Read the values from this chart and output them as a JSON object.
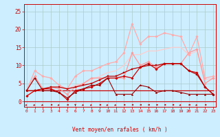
{
  "bg_color": "#cceeff",
  "grid_color": "#aacccc",
  "xlabel": "Vent moyen/en rafales ( km/h )",
  "xlim": [
    -0.3,
    23.3
  ],
  "ylim": [
    -1.5,
    27
  ],
  "yticks": [
    0,
    5,
    10,
    15,
    20,
    25
  ],
  "xticks": [
    0,
    1,
    2,
    3,
    4,
    5,
    6,
    7,
    8,
    9,
    10,
    11,
    12,
    13,
    14,
    15,
    16,
    17,
    18,
    19,
    20,
    21,
    22,
    23
  ],
  "lines": [
    {
      "y": [
        3,
        3,
        3,
        3,
        3,
        3,
        3,
        3,
        3,
        3,
        3,
        3,
        3,
        3,
        3,
        3,
        3,
        3,
        3,
        3,
        3,
        3,
        3,
        3
      ],
      "color": "#cc0000",
      "lw": 0.9,
      "marker": null,
      "ms": 0,
      "zorder": 2
    },
    {
      "y": [
        1.5,
        3,
        3.5,
        3.5,
        2.5,
        0.5,
        3,
        3.5,
        4,
        5,
        6.5,
        6.5,
        7,
        6.5,
        9.5,
        10.5,
        9,
        10.5,
        10.5,
        10.5,
        8.5,
        8,
        4,
        2
      ],
      "color": "#cc0000",
      "lw": 0.9,
      "marker": "D",
      "ms": 1.8,
      "zorder": 3
    },
    {
      "y": [
        3,
        3,
        3.5,
        4,
        4,
        3.5,
        4,
        4.5,
        5,
        6,
        7,
        7,
        8,
        9,
        9.5,
        10,
        10,
        10.5,
        10.5,
        10.5,
        8.5,
        7.5,
        4,
        2
      ],
      "color": "#bb0000",
      "lw": 0.9,
      "marker": "s",
      "ms": 1.8,
      "zorder": 3
    },
    {
      "y": [
        3,
        6.5,
        3,
        3,
        2.5,
        1,
        2.5,
        3.5,
        4.5,
        4.5,
        6.5,
        2,
        2,
        2,
        4.5,
        4,
        2.5,
        3,
        3,
        2.5,
        2,
        2,
        2,
        2
      ],
      "color": "#990000",
      "lw": 0.8,
      "marker": "^",
      "ms": 1.8,
      "zorder": 3
    },
    {
      "y": [
        3,
        7,
        3.5,
        4,
        3.5,
        2,
        4,
        5,
        6.5,
        6.5,
        6.5,
        6.5,
        6.5,
        13.5,
        10,
        11,
        9.5,
        10.5,
        10.5,
        10.5,
        13.5,
        14.5,
        5,
        6.5
      ],
      "color": "#ff9999",
      "lw": 0.9,
      "marker": "D",
      "ms": 1.8,
      "zorder": 2
    },
    {
      "y": [
        3,
        8.5,
        7,
        6.5,
        4.5,
        3.5,
        7,
        8.5,
        8.5,
        9.5,
        10.5,
        11,
        13.5,
        21.5,
        16,
        18,
        18,
        19,
        18.5,
        18,
        13,
        18,
        6.5,
        7
      ],
      "color": "#ffaaaa",
      "lw": 0.9,
      "marker": "D",
      "ms": 1.8,
      "zorder": 2
    },
    {
      "y": [
        1.5,
        3,
        3,
        4,
        4,
        3.5,
        4.5,
        5,
        6,
        7,
        8,
        8.5,
        10,
        13,
        13,
        14,
        14,
        14.5,
        15,
        15,
        13,
        14,
        6,
        6.5
      ],
      "color": "#ffcccc",
      "lw": 0.9,
      "marker": null,
      "ms": 0,
      "zorder": 1
    }
  ],
  "arrows": [
    {
      "x": 0,
      "a": 225
    },
    {
      "x": 1,
      "a": 225
    },
    {
      "x": 2,
      "a": 225
    },
    {
      "x": 3,
      "a": 270
    },
    {
      "x": 4,
      "a": 225
    },
    {
      "x": 5,
      "a": 270
    },
    {
      "x": 6,
      "a": 180
    },
    {
      "x": 7,
      "a": 225
    },
    {
      "x": 8,
      "a": 225
    },
    {
      "x": 9,
      "a": 270
    },
    {
      "x": 10,
      "a": 225
    },
    {
      "x": 11,
      "a": 225
    },
    {
      "x": 12,
      "a": 270
    },
    {
      "x": 13,
      "a": 270
    },
    {
      "x": 14,
      "a": 270
    },
    {
      "x": 15,
      "a": 270
    },
    {
      "x": 16,
      "a": 270
    },
    {
      "x": 17,
      "a": 270
    },
    {
      "x": 18,
      "a": 270
    },
    {
      "x": 19,
      "a": 225
    },
    {
      "x": 20,
      "a": 270
    },
    {
      "x": 21,
      "a": 225
    },
    {
      "x": 22,
      "a": 270
    }
  ]
}
